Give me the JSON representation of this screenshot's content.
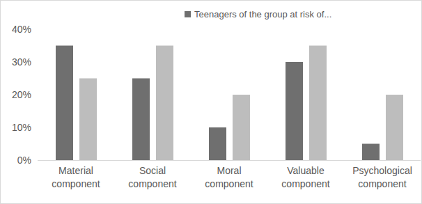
{
  "chart_data": {
    "type": "bar",
    "categories": [
      "Material component",
      "Social component",
      "Moral component",
      "Valuable component",
      "Psychological component"
    ],
    "series": [
      {
        "name": "Teenagers of the group at risk of...",
        "color": "#6f6f6f",
        "values": [
          35,
          25,
          10,
          30,
          5
        ]
      },
      {
        "name": null,
        "color": "#bdbdbd",
        "values": [
          25,
          35,
          20,
          35,
          20
        ]
      }
    ],
    "ylim": [
      0,
      40
    ],
    "yticks": [
      {
        "value": 0,
        "label": "0%"
      },
      {
        "value": 10,
        "label": "10%"
      },
      {
        "value": 20,
        "label": "20%"
      },
      {
        "value": 30,
        "label": "30%"
      },
      {
        "value": 40,
        "label": "40%"
      }
    ],
    "grid": false,
    "legend": "top-right"
  }
}
